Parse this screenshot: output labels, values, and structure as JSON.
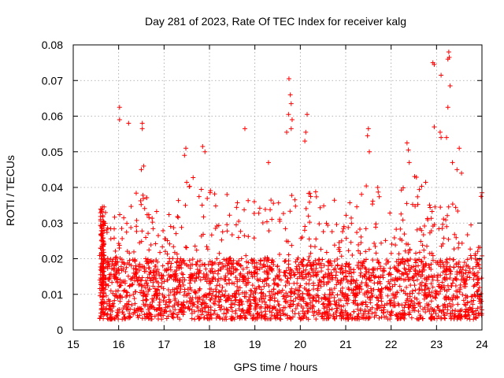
{
  "chart_data": {
    "type": "scatter",
    "title": "Day 281 of 2023, Rate Of TEC Index for receiver kalg",
    "xlabel": "GPS time / hours",
    "ylabel": "ROTI / TECUs",
    "xlim": [
      15,
      24
    ],
    "ylim": [
      0,
      0.08
    ],
    "x_ticks": [
      15,
      16,
      17,
      18,
      19,
      20,
      21,
      22,
      23,
      24
    ],
    "y_ticks": [
      0,
      0.01,
      0.02,
      0.03,
      0.04,
      0.05,
      0.06,
      0.07,
      0.08
    ],
    "x_tick_labels": [
      "15",
      "16",
      "17",
      "18",
      "19",
      "20",
      "21",
      "22",
      "23",
      "24"
    ],
    "y_tick_labels": [
      "0",
      "0.01",
      "0.02",
      "0.03",
      "0.04",
      "0.05",
      "0.06",
      "0.07",
      "0.08"
    ],
    "grid": true,
    "marker": "+",
    "color": "#ff0000",
    "data_start_hour": 15.58,
    "data_end_hour": 24.0,
    "series": [
      {
        "name": "ROTI",
        "peak_points": [
          {
            "x": 16.02,
            "y": 0.0625
          },
          {
            "x": 16.02,
            "y": 0.059
          },
          {
            "x": 16.22,
            "y": 0.058
          },
          {
            "x": 16.52,
            "y": 0.058
          },
          {
            "x": 16.52,
            "y": 0.0565
          },
          {
            "x": 16.55,
            "y": 0.046
          },
          {
            "x": 16.5,
            "y": 0.045
          },
          {
            "x": 17.48,
            "y": 0.051
          },
          {
            "x": 17.45,
            "y": 0.049
          },
          {
            "x": 17.85,
            "y": 0.0515
          },
          {
            "x": 17.9,
            "y": 0.05
          },
          {
            "x": 18.78,
            "y": 0.0565
          },
          {
            "x": 19.3,
            "y": 0.047
          },
          {
            "x": 19.7,
            "y": 0.0555
          },
          {
            "x": 19.75,
            "y": 0.0705
          },
          {
            "x": 19.78,
            "y": 0.066
          },
          {
            "x": 19.8,
            "y": 0.0635
          },
          {
            "x": 19.74,
            "y": 0.0605
          },
          {
            "x": 19.82,
            "y": 0.059
          },
          {
            "x": 19.8,
            "y": 0.0565
          },
          {
            "x": 20.15,
            "y": 0.0605
          },
          {
            "x": 20.12,
            "y": 0.0555
          },
          {
            "x": 20.1,
            "y": 0.053
          },
          {
            "x": 21.5,
            "y": 0.0565
          },
          {
            "x": 21.48,
            "y": 0.0545
          },
          {
            "x": 21.52,
            "y": 0.05
          },
          {
            "x": 22.35,
            "y": 0.0525
          },
          {
            "x": 22.38,
            "y": 0.0505
          },
          {
            "x": 22.4,
            "y": 0.047
          },
          {
            "x": 22.92,
            "y": 0.075
          },
          {
            "x": 22.95,
            "y": 0.0745
          },
          {
            "x": 23.27,
            "y": 0.078
          },
          {
            "x": 23.28,
            "y": 0.0765
          },
          {
            "x": 23.25,
            "y": 0.076
          },
          {
            "x": 23.1,
            "y": 0.0715
          },
          {
            "x": 23.3,
            "y": 0.0685
          },
          {
            "x": 23.25,
            "y": 0.0625
          },
          {
            "x": 22.95,
            "y": 0.057
          },
          {
            "x": 23.08,
            "y": 0.0555
          },
          {
            "x": 23.1,
            "y": 0.054
          },
          {
            "x": 23.22,
            "y": 0.054
          },
          {
            "x": 23.5,
            "y": 0.051
          },
          {
            "x": 23.35,
            "y": 0.047
          },
          {
            "x": 23.45,
            "y": 0.045
          },
          {
            "x": 23.55,
            "y": 0.044
          },
          {
            "x": 24.0,
            "y": 0.0385
          },
          {
            "x": 23.98,
            "y": 0.0375
          }
        ],
        "envelope_upper": [
          {
            "x": 15.6,
            "y": 0.035
          },
          {
            "x": 16.0,
            "y": 0.033
          },
          {
            "x": 16.5,
            "y": 0.04
          },
          {
            "x": 17.0,
            "y": 0.033
          },
          {
            "x": 17.5,
            "y": 0.043
          },
          {
            "x": 18.0,
            "y": 0.044
          },
          {
            "x": 18.5,
            "y": 0.038
          },
          {
            "x": 19.0,
            "y": 0.036
          },
          {
            "x": 19.5,
            "y": 0.04
          },
          {
            "x": 20.0,
            "y": 0.042
          },
          {
            "x": 20.5,
            "y": 0.04
          },
          {
            "x": 21.0,
            "y": 0.035
          },
          {
            "x": 21.5,
            "y": 0.045
          },
          {
            "x": 22.0,
            "y": 0.035
          },
          {
            "x": 22.5,
            "y": 0.045
          },
          {
            "x": 23.0,
            "y": 0.04
          },
          {
            "x": 23.5,
            "y": 0.035
          },
          {
            "x": 24.0,
            "y": 0.03
          }
        ],
        "typical_min": 0.003,
        "typical_max": 0.02
      }
    ]
  }
}
